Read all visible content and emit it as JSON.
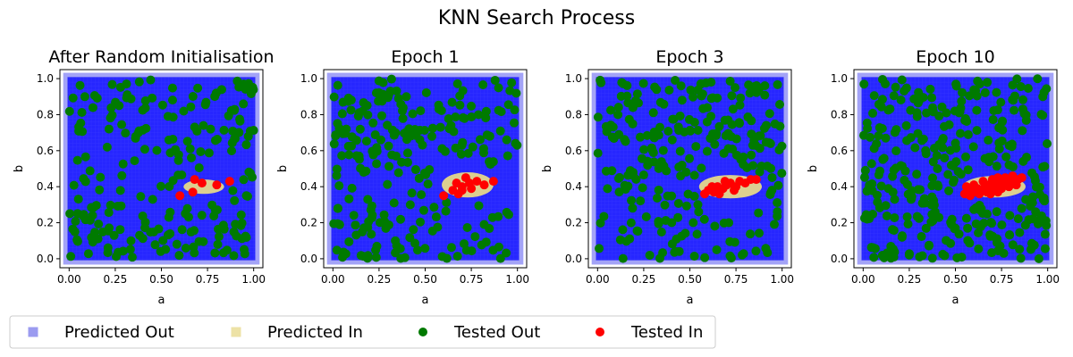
{
  "title": "KNN Search Process",
  "colors": {
    "predicted_out": "#0000ff",
    "predicted_in": "#e6d88a",
    "tested_out": "#007a00",
    "tested_in": "#ff0000"
  },
  "legend": {
    "position": "bottom-left",
    "items": [
      {
        "label": "Predicted Out",
        "marker": "square",
        "color": "#9b9bf0"
      },
      {
        "label": "Predicted In",
        "marker": "square",
        "color": "#ede2a6"
      },
      {
        "label": "Tested Out",
        "marker": "circle",
        "color": "#007a00"
      },
      {
        "label": "Tested In",
        "marker": "circle",
        "color": "#ff0000"
      }
    ]
  },
  "chart_data": [
    {
      "type": "scatter",
      "title": "After Random Initialisation",
      "xlabel": "a",
      "ylabel": "b",
      "xlim": [
        -0.05,
        1.05
      ],
      "ylim": [
        -0.05,
        1.05
      ],
      "xticks": [
        "0.00",
        "0.25",
        "0.50",
        "0.75",
        "1.00"
      ],
      "yticks": [
        "0.0",
        "0.2",
        "0.4",
        "0.6",
        "0.8",
        "1.0"
      ],
      "predicted_in_region": {
        "center": [
          0.73,
          0.4
        ],
        "rx": 0.11,
        "ry": 0.04
      },
      "tested_in": [
        [
          0.6,
          0.35
        ],
        [
          0.67,
          0.37
        ],
        [
          0.68,
          0.44
        ],
        [
          0.72,
          0.42
        ],
        [
          0.8,
          0.41
        ],
        [
          0.87,
          0.43
        ]
      ],
      "tested_out_count": 220,
      "series": [
        {
          "name": "Predicted Out",
          "marker": "square"
        },
        {
          "name": "Predicted In",
          "marker": "square"
        },
        {
          "name": "Tested Out",
          "marker": "circle"
        },
        {
          "name": "Tested In",
          "marker": "circle"
        }
      ]
    },
    {
      "type": "scatter",
      "title": "Epoch 1",
      "xlabel": "a",
      "ylabel": "b",
      "xlim": [
        -0.05,
        1.05
      ],
      "ylim": [
        -0.05,
        1.05
      ],
      "xticks": [
        "0.00",
        "0.25",
        "0.50",
        "0.75",
        "1.00"
      ],
      "yticks": [
        "0.0",
        "0.2",
        "0.4",
        "0.6",
        "0.8",
        "1.0"
      ],
      "predicted_in_region": {
        "center": [
          0.73,
          0.41
        ],
        "rx": 0.14,
        "ry": 0.07
      },
      "tested_in": [
        [
          0.6,
          0.35
        ],
        [
          0.65,
          0.38
        ],
        [
          0.67,
          0.42
        ],
        [
          0.7,
          0.4
        ],
        [
          0.72,
          0.45
        ],
        [
          0.75,
          0.39
        ],
        [
          0.78,
          0.43
        ],
        [
          0.82,
          0.41
        ],
        [
          0.87,
          0.43
        ],
        [
          0.68,
          0.36
        ],
        [
          0.74,
          0.42
        ],
        [
          0.7,
          0.38
        ]
      ],
      "tested_out_count": 240,
      "series": [
        {
          "name": "Predicted Out",
          "marker": "square"
        },
        {
          "name": "Predicted In",
          "marker": "square"
        },
        {
          "name": "Tested Out",
          "marker": "circle"
        },
        {
          "name": "Tested In",
          "marker": "circle"
        }
      ]
    },
    {
      "type": "scatter",
      "title": "Epoch 3",
      "xlabel": "a",
      "ylabel": "b",
      "xlim": [
        -0.05,
        1.05
      ],
      "ylim": [
        -0.05,
        1.05
      ],
      "xticks": [
        "0.00",
        "0.25",
        "0.50",
        "0.75",
        "1.00"
      ],
      "yticks": [
        "0.0",
        "0.2",
        "0.4",
        "0.6",
        "0.8",
        "1.0"
      ],
      "predicted_in_region": {
        "center": [
          0.72,
          0.4
        ],
        "rx": 0.17,
        "ry": 0.065
      },
      "tested_in": [
        [
          0.58,
          0.36
        ],
        [
          0.6,
          0.38
        ],
        [
          0.63,
          0.37
        ],
        [
          0.65,
          0.4
        ],
        [
          0.68,
          0.39
        ],
        [
          0.7,
          0.41
        ],
        [
          0.72,
          0.42
        ],
        [
          0.75,
          0.4
        ],
        [
          0.77,
          0.43
        ],
        [
          0.8,
          0.42
        ],
        [
          0.83,
          0.44
        ],
        [
          0.86,
          0.44
        ],
        [
          0.66,
          0.36
        ],
        [
          0.74,
          0.38
        ],
        [
          0.69,
          0.43
        ],
        [
          0.62,
          0.4
        ]
      ],
      "tested_out_count": 250,
      "series": [
        {
          "name": "Predicted Out",
          "marker": "square"
        },
        {
          "name": "Predicted In",
          "marker": "square"
        },
        {
          "name": "Tested Out",
          "marker": "circle"
        },
        {
          "name": "Tested In",
          "marker": "circle"
        }
      ]
    },
    {
      "type": "scatter",
      "title": "Epoch 10",
      "xlabel": "a",
      "ylabel": "b",
      "xlim": [
        -0.05,
        1.05
      ],
      "ylim": [
        -0.05,
        1.05
      ],
      "xticks": [
        "0.00",
        "0.25",
        "0.50",
        "0.75",
        "1.00"
      ],
      "yticks": [
        "0.0",
        "0.2",
        "0.4",
        "0.6",
        "0.8",
        "1.0"
      ],
      "predicted_in_region": {
        "center": [
          0.71,
          0.4
        ],
        "rx": 0.17,
        "ry": 0.06
      },
      "tested_in": [
        [
          0.55,
          0.36
        ],
        [
          0.57,
          0.38
        ],
        [
          0.6,
          0.37
        ],
        [
          0.62,
          0.39
        ],
        [
          0.64,
          0.38
        ],
        [
          0.66,
          0.4
        ],
        [
          0.68,
          0.41
        ],
        [
          0.7,
          0.4
        ],
        [
          0.72,
          0.42
        ],
        [
          0.74,
          0.41
        ],
        [
          0.76,
          0.43
        ],
        [
          0.78,
          0.42
        ],
        [
          0.8,
          0.44
        ],
        [
          0.82,
          0.43
        ],
        [
          0.84,
          0.44
        ],
        [
          0.86,
          0.45
        ],
        [
          0.58,
          0.35
        ],
        [
          0.63,
          0.36
        ],
        [
          0.67,
          0.37
        ],
        [
          0.71,
          0.38
        ],
        [
          0.75,
          0.39
        ],
        [
          0.79,
          0.4
        ],
        [
          0.83,
          0.41
        ],
        [
          0.6,
          0.41
        ],
        [
          0.65,
          0.43
        ],
        [
          0.7,
          0.44
        ],
        [
          0.73,
          0.45
        ],
        [
          0.77,
          0.45
        ],
        [
          0.81,
          0.46
        ],
        [
          0.69,
          0.36
        ],
        [
          0.73,
          0.37
        ],
        [
          0.56,
          0.4
        ]
      ],
      "tested_out_count": 320,
      "series": [
        {
          "name": "Predicted Out",
          "marker": "square"
        },
        {
          "name": "Predicted In",
          "marker": "square"
        },
        {
          "name": "Tested Out",
          "marker": "circle"
        },
        {
          "name": "Tested In",
          "marker": "circle"
        }
      ]
    }
  ]
}
